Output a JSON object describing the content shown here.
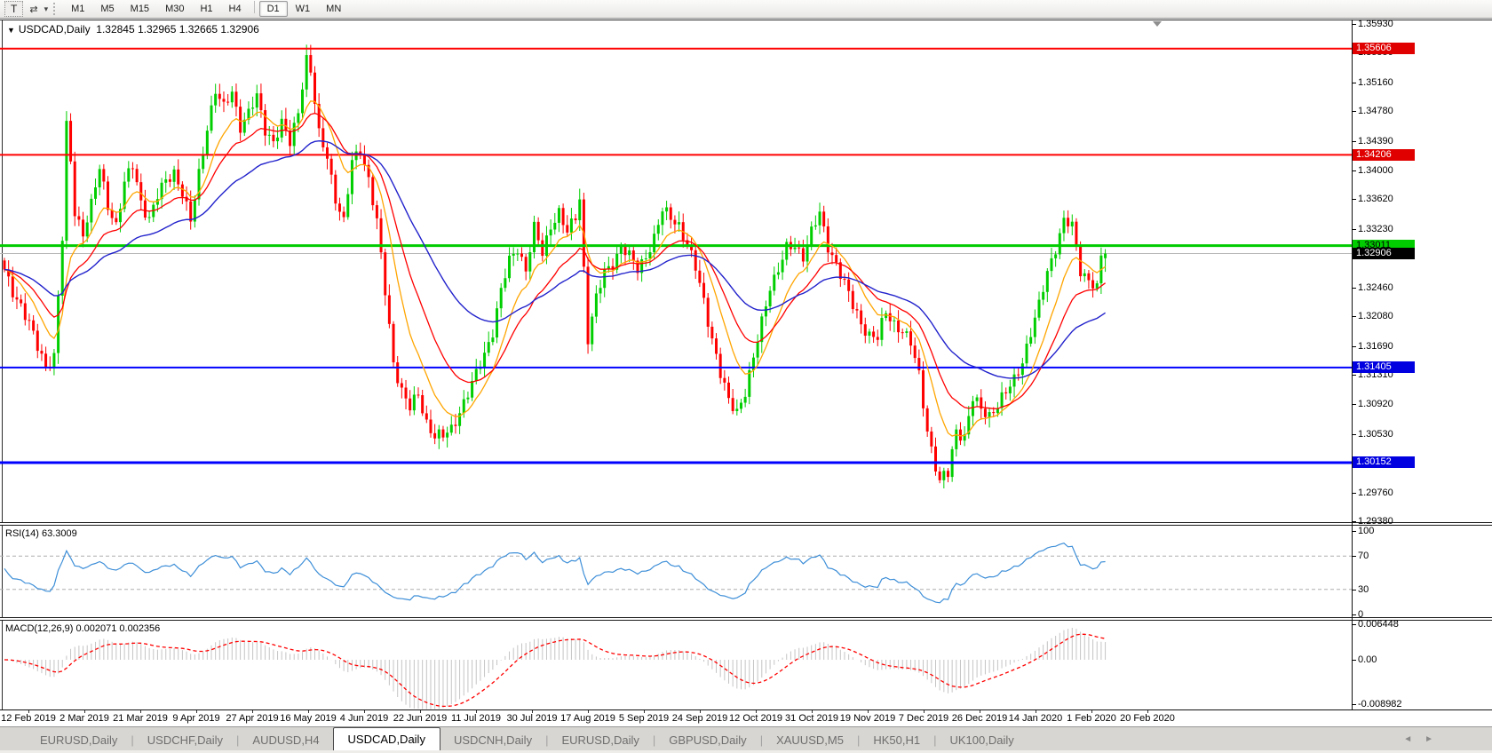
{
  "toolbar": {
    "text_tool_label": "T",
    "cycle_icon_glyph": "⇄",
    "caret_glyph": "▾",
    "timeframes": [
      "M1",
      "M5",
      "M15",
      "M30",
      "H1",
      "H4",
      "D1",
      "W1",
      "MN"
    ],
    "active_timeframe": "D1"
  },
  "chart_header": {
    "collapse_icon": "▼",
    "symbol": "USDCAD,Daily",
    "ohlc": "1.32845 1.32965 1.32665 1.32906"
  },
  "chart_data": {
    "type": "candlestick",
    "symbol": "USDCAD",
    "timeframe": "Daily",
    "open": "1.32845",
    "high": "1.32965",
    "low": "1.32665",
    "close": "1.32906",
    "candle_count": 267,
    "colors": {
      "bull": "#00CE00",
      "bear": "#FF0000",
      "background": "#FFFFFF"
    },
    "y_axis": {
      "ticks": [
        "1.35930",
        "1.35550",
        "1.35160",
        "1.34780",
        "1.34390",
        "1.34000",
        "1.33620",
        "1.33230",
        "1.32460",
        "1.32080",
        "1.31690",
        "1.31310",
        "1.30920",
        "1.30530",
        "1.29760",
        "1.29380"
      ],
      "range_top": 1.3593,
      "range_bottom": 1.2938
    },
    "x_axis": {
      "dates": [
        "12 Feb 2019",
        "2 Mar 2019",
        "21 Mar 2019",
        "9 Apr 2019",
        "27 Apr 2019",
        "16 May 2019",
        "4 Jun 2019",
        "22 Jun 2019",
        "11 Jul 2019",
        "30 Jul 2019",
        "17 Aug 2019",
        "5 Sep 2019",
        "24 Sep 2019",
        "12 Oct 2019",
        "31 Oct 2019",
        "19 Nov 2019",
        "7 Dec 2019",
        "26 Dec 2019",
        "14 Jan 2020",
        "1 Feb 2020",
        "20 Feb 2020"
      ]
    },
    "horizontal_lines": [
      {
        "label": "1.35606",
        "price": 1.35606,
        "color": "#FF0000",
        "width": 2,
        "badge_bg": "#E00000",
        "badge_text": "#FFFFFF"
      },
      {
        "label": "1.34206",
        "price": 1.34206,
        "color": "#FF0000",
        "width": 2,
        "badge_bg": "#E00000",
        "badge_text": "#FFFFFF"
      },
      {
        "label": "1.33011",
        "price": 1.33011,
        "color": "#00CC00",
        "width": 3,
        "badge_bg": "#00CC00",
        "badge_text": "#000000"
      },
      {
        "label": "1.31405",
        "price": 1.31405,
        "color": "#0000FF",
        "width": 2,
        "badge_bg": "#0000E0",
        "badge_text": "#FFFFFF"
      },
      {
        "label": "1.30152",
        "price": 1.30152,
        "color": "#0000FF",
        "width": 3,
        "badge_bg": "#0000E0",
        "badge_text": "#FFFFFF"
      }
    ],
    "current_price": {
      "label": "1.32906",
      "value": 1.32906,
      "line_color": "#B8B8B8",
      "badge_bg": "#000000",
      "badge_text": "#FFFFFF"
    },
    "moving_averages": [
      {
        "period": 10,
        "color": "#FFA500",
        "width": 1.3
      },
      {
        "period": 20,
        "color": "#FF0000",
        "width": 1.3
      },
      {
        "period": 45,
        "color": "#2222CC",
        "width": 1.4
      }
    ],
    "price_path_anchors": [
      [
        0,
        1.3265
      ],
      [
        2,
        1.324
      ],
      [
        4,
        1.3225
      ],
      [
        6,
        1.3198
      ],
      [
        8,
        1.3165
      ],
      [
        10,
        1.3142
      ],
      [
        12,
        1.3158
      ],
      [
        13,
        1.3235
      ],
      [
        14,
        1.331
      ],
      [
        15,
        1.3455
      ],
      [
        16,
        1.341
      ],
      [
        17,
        1.3345
      ],
      [
        19,
        1.332
      ],
      [
        21,
        1.3355
      ],
      [
        23,
        1.34
      ],
      [
        25,
        1.3355
      ],
      [
        27,
        1.333
      ],
      [
        29,
        1.3382
      ],
      [
        31,
        1.3405
      ],
      [
        33,
        1.336
      ],
      [
        35,
        1.3338
      ],
      [
        37,
        1.3365
      ],
      [
        39,
        1.3385
      ],
      [
        41,
        1.34
      ],
      [
        43,
        1.3372
      ],
      [
        45,
        1.333
      ],
      [
        47,
        1.3395
      ],
      [
        49,
        1.346
      ],
      [
        51,
        1.3505
      ],
      [
        53,
        1.348
      ],
      [
        55,
        1.3505
      ],
      [
        57,
        1.346
      ],
      [
        59,
        1.3475
      ],
      [
        61,
        1.3495
      ],
      [
        63,
        1.3455
      ],
      [
        65,
        1.344
      ],
      [
        67,
        1.346
      ],
      [
        69,
        1.3435
      ],
      [
        71,
        1.348
      ],
      [
        73,
        1.3552
      ],
      [
        74,
        1.353
      ],
      [
        76,
        1.3445
      ],
      [
        78,
        1.342
      ],
      [
        80,
        1.3365
      ],
      [
        82,
        1.333
      ],
      [
        84,
        1.341
      ],
      [
        86,
        1.343
      ],
      [
        88,
        1.339
      ],
      [
        90,
        1.333
      ],
      [
        92,
        1.324
      ],
      [
        94,
        1.315
      ],
      [
        96,
        1.311
      ],
      [
        98,
        1.3085
      ],
      [
        100,
        1.3105
      ],
      [
        102,
        1.307
      ],
      [
        104,
        1.305
      ],
      [
        106,
        1.3048
      ],
      [
        108,
        1.306
      ],
      [
        110,
        1.3085
      ],
      [
        112,
        1.3105
      ],
      [
        114,
        1.313
      ],
      [
        116,
        1.316
      ],
      [
        118,
        1.319
      ],
      [
        120,
        1.324
      ],
      [
        122,
        1.328
      ],
      [
        124,
        1.33
      ],
      [
        126,
        1.327
      ],
      [
        128,
        1.3322
      ],
      [
        130,
        1.329
      ],
      [
        132,
        1.333
      ],
      [
        134,
        1.3345
      ],
      [
        136,
        1.3315
      ],
      [
        138,
        1.334
      ],
      [
        139,
        1.3365
      ],
      [
        141,
        1.318
      ],
      [
        143,
        1.323
      ],
      [
        145,
        1.3265
      ],
      [
        147,
        1.328
      ],
      [
        149,
        1.33
      ],
      [
        151,
        1.3285
      ],
      [
        153,
        1.327
      ],
      [
        155,
        1.329
      ],
      [
        157,
        1.331
      ],
      [
        159,
        1.3345
      ],
      [
        161,
        1.334
      ],
      [
        163,
        1.333
      ],
      [
        165,
        1.33
      ],
      [
        167,
        1.327
      ],
      [
        169,
        1.323
      ],
      [
        171,
        1.318
      ],
      [
        173,
        1.313
      ],
      [
        175,
        1.3095
      ],
      [
        177,
        1.3085
      ],
      [
        179,
        1.311
      ],
      [
        181,
        1.315
      ],
      [
        183,
        1.32
      ],
      [
        185,
        1.325
      ],
      [
        187,
        1.327
      ],
      [
        189,
        1.3295
      ],
      [
        191,
        1.33
      ],
      [
        193,
        1.329
      ],
      [
        195,
        1.332
      ],
      [
        197,
        1.334
      ],
      [
        199,
        1.33
      ],
      [
        201,
        1.328
      ],
      [
        203,
        1.325
      ],
      [
        205,
        1.322
      ],
      [
        207,
        1.32
      ],
      [
        209,
        1.3185
      ],
      [
        211,
        1.3178
      ],
      [
        213,
        1.3212
      ],
      [
        215,
        1.32
      ],
      [
        217,
        1.319
      ],
      [
        219,
        1.317
      ],
      [
        221,
        1.313
      ],
      [
        223,
        1.306
      ],
      [
        225,
        1.301
      ],
      [
        226,
        1.2992
      ],
      [
        228,
        1.3
      ],
      [
        230,
        1.306
      ],
      [
        232,
        1.305
      ],
      [
        234,
        1.3098
      ],
      [
        236,
        1.3085
      ],
      [
        238,
        1.308
      ],
      [
        240,
        1.3092
      ],
      [
        242,
        1.3105
      ],
      [
        244,
        1.3125
      ],
      [
        246,
        1.3152
      ],
      [
        248,
        1.3185
      ],
      [
        250,
        1.322
      ],
      [
        252,
        1.3268
      ],
      [
        254,
        1.33
      ],
      [
        256,
        1.3332
      ],
      [
        258,
        1.3325
      ],
      [
        260,
        1.327
      ],
      [
        262,
        1.3258
      ],
      [
        264,
        1.3242
      ],
      [
        265,
        1.3288
      ],
      [
        266,
        1.32906
      ]
    ],
    "pinned_closes": [
      [
        73,
        1.3552
      ],
      [
        226,
        1.2992
      ],
      [
        265,
        1.3288
      ],
      [
        266,
        1.32906
      ]
    ],
    "indicators": {
      "rsi": {
        "label": "RSI(14) 63.3009",
        "period": 14,
        "value": 63.3009,
        "levels": [
          100,
          70,
          30,
          0
        ],
        "dashed_levels": [
          70,
          30
        ],
        "color": "#3E8FD8",
        "level_line_color": "#ADADAD"
      },
      "macd": {
        "label": "MACD(12,26,9) 0.002071 0.002356",
        "fast": 12,
        "slow": 26,
        "signal_period": 9,
        "main_value": 0.002071,
        "signal_value": 0.002356,
        "axis_labels": [
          {
            "value": 0.006448,
            "text": "0.006448"
          },
          {
            "value": 0,
            "text": "0.00"
          },
          {
            "value": -0.008982,
            "text": "-0.008982"
          }
        ],
        "histogram_color": "#C4C4C4",
        "signal_color": "#FF0000"
      }
    }
  },
  "tabs": {
    "items": [
      {
        "label": "EURUSD,Daily",
        "active": false
      },
      {
        "label": "USDCHF,Daily",
        "active": false
      },
      {
        "label": "AUDUSD,H4",
        "active": false
      },
      {
        "label": "USDCAD,Daily",
        "active": true
      },
      {
        "label": "USDCNH,Daily",
        "active": false
      },
      {
        "label": "EURUSD,Daily",
        "active": false
      },
      {
        "label": "GBPUSD,Daily",
        "active": false
      },
      {
        "label": "XAUUSD,M5",
        "active": false
      },
      {
        "label": "HK50,H1",
        "active": false
      },
      {
        "label": "UK100,Daily",
        "active": false
      }
    ],
    "nav_left": "◄",
    "nav_right": "►"
  }
}
